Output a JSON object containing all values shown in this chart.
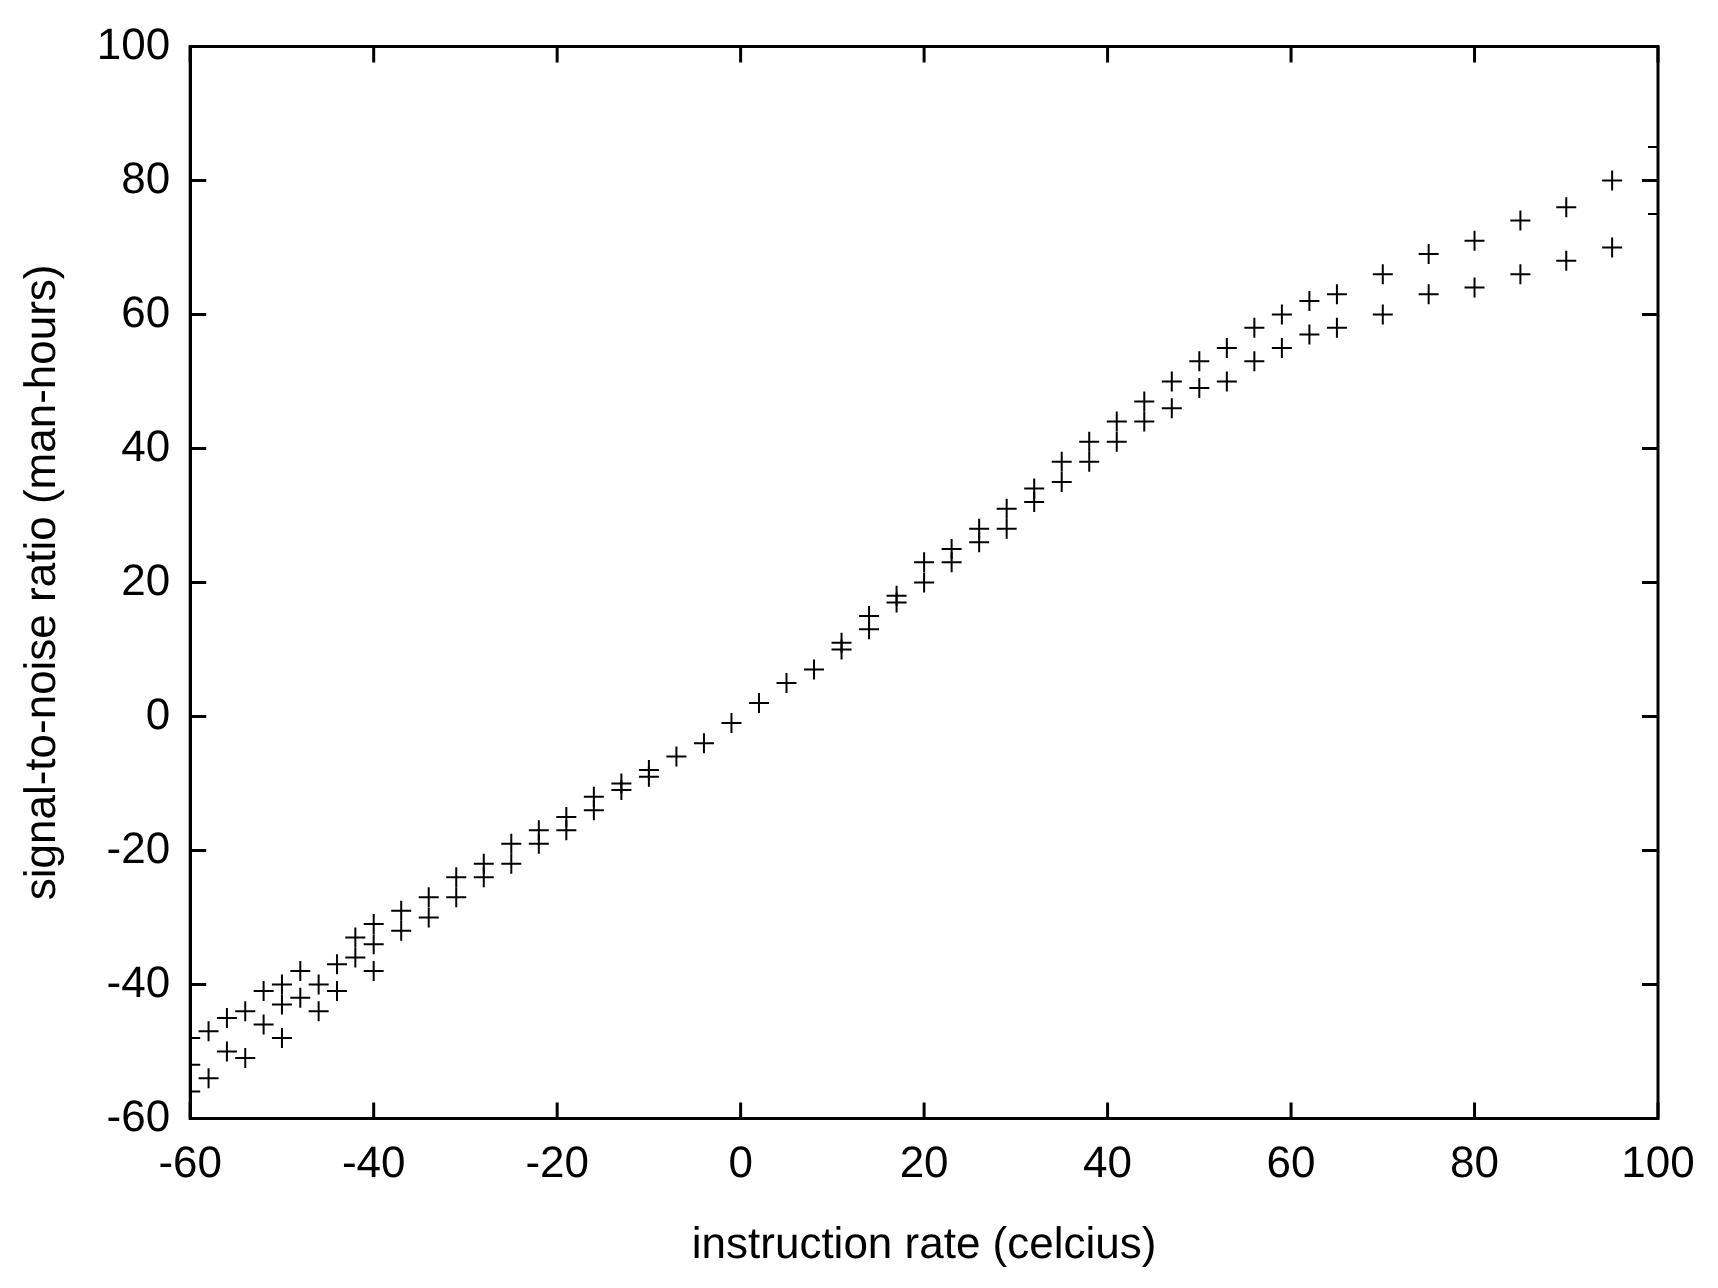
{
  "chart_data": {
    "type": "scatter",
    "xlabel": "instruction rate (celcius)",
    "ylabel": "signal-to-noise ratio (man-hours)",
    "xlim": [
      -60,
      100
    ],
    "ylim": [
      -60,
      100
    ],
    "xticks": [
      -60,
      -40,
      -20,
      0,
      20,
      40,
      60,
      80,
      100
    ],
    "yticks": [
      -60,
      -40,
      -20,
      0,
      20,
      40,
      60,
      80,
      100
    ],
    "grid": false,
    "legend": false,
    "marker": "cross",
    "series": [
      {
        "color": "#000000",
        "x": [
          -60,
          -60,
          -60,
          -58,
          -58,
          -56,
          -56,
          -54,
          -54,
          -52,
          -52,
          -50,
          -50,
          -50,
          -48,
          -48,
          -46,
          -46,
          -44,
          -44,
          -42,
          -42,
          -40,
          -40,
          -40,
          -37,
          -37,
          -34,
          -34,
          -31,
          -31,
          -28,
          -28,
          -25,
          -25,
          -22,
          -22,
          -19,
          -19,
          -16,
          -16,
          -13,
          -13,
          -10,
          -10,
          -7,
          -4,
          -1,
          2,
          5,
          8,
          11,
          11,
          14,
          14,
          17,
          17,
          20,
          20,
          23,
          23,
          26,
          26,
          29,
          29,
          32,
          32,
          35,
          35,
          38,
          38,
          41,
          41,
          44,
          44,
          47,
          47,
          50,
          50,
          53,
          53,
          56,
          56,
          59,
          59,
          62,
          62,
          65,
          65,
          70,
          70,
          75,
          75,
          80,
          80,
          85,
          85,
          90,
          90,
          95,
          95,
          100,
          100
        ],
        "values": [
          -48,
          -56,
          -52,
          -47,
          -54,
          -50,
          -45,
          -44,
          -51,
          -46,
          -41,
          -43,
          -48,
          -40,
          -42,
          -38,
          -40,
          -44,
          -37,
          -41,
          -36,
          -33,
          -34,
          -38,
          -31,
          -32,
          -29,
          -30,
          -27,
          -27,
          -24,
          -24,
          -22,
          -22,
          -19,
          -19,
          -17,
          -17,
          -15,
          -14,
          -12,
          -11,
          -10,
          -9,
          -8,
          -6,
          -4,
          -1,
          2,
          5,
          7,
          10,
          11,
          13,
          15,
          17,
          18,
          20,
          23,
          23,
          25,
          26,
          28,
          28,
          31,
          32,
          34,
          35,
          38,
          38,
          41,
          41,
          44,
          44,
          47,
          46,
          50,
          49,
          53,
          50,
          55,
          53,
          58,
          55,
          60,
          57,
          62,
          58,
          63,
          60,
          66,
          63,
          69,
          64,
          71,
          66,
          74,
          68,
          76,
          70,
          80,
          75,
          85
        ]
      }
    ]
  }
}
